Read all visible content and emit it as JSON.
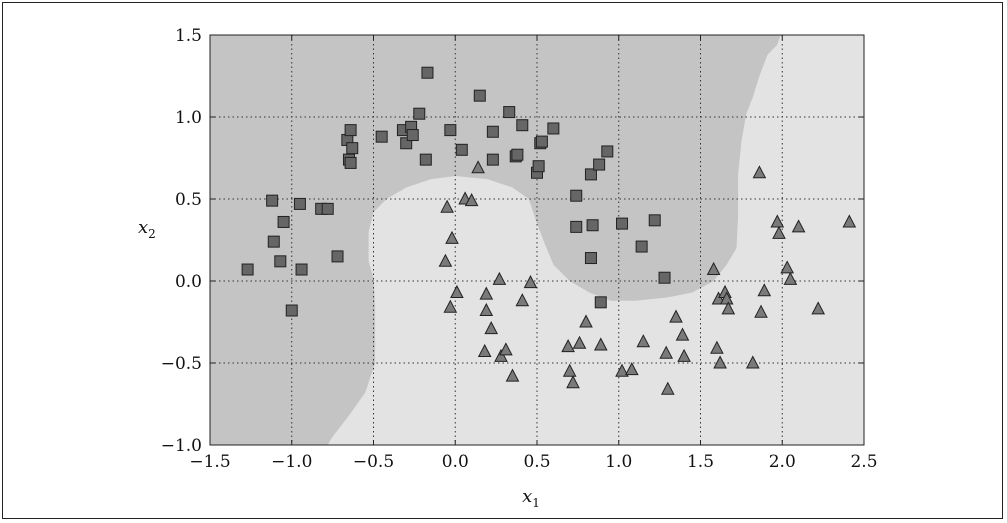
{
  "chart_data": {
    "type": "scatter",
    "title": "",
    "xlabel": "x",
    "xlabel_sub": "1",
    "ylabel": "x",
    "ylabel_sub": "2",
    "xlim": [
      -1.5,
      2.5
    ],
    "ylim": [
      -1.0,
      1.5
    ],
    "xticks": [
      "−1.5",
      "−1.0",
      "−0.5",
      "0.0",
      "0.5",
      "1.0",
      "1.5",
      "2.0",
      "2.5"
    ],
    "yticks": [
      "1.5",
      "1.0",
      "0.5",
      "0.0",
      "−0.5",
      "−1.0"
    ],
    "grid": true,
    "decision_regions": {
      "class0_color": "#c4c4c4",
      "class1_color": "#e3e3e3"
    },
    "series": [
      {
        "marker": "square",
        "color": "#666666",
        "points": [
          [
            -1.27,
            0.07
          ],
          [
            -1.12,
            0.49
          ],
          [
            -1.11,
            0.24
          ],
          [
            -1.07,
            0.12
          ],
          [
            -1.05,
            0.36
          ],
          [
            -1.0,
            -0.18
          ],
          [
            -0.95,
            0.47
          ],
          [
            -0.94,
            0.07
          ],
          [
            -0.82,
            0.44
          ],
          [
            -0.78,
            0.44
          ],
          [
            -0.72,
            0.15
          ],
          [
            -0.66,
            0.86
          ],
          [
            -0.65,
            0.74
          ],
          [
            -0.64,
            0.72
          ],
          [
            -0.64,
            0.92
          ],
          [
            -0.63,
            0.81
          ],
          [
            -0.45,
            0.88
          ],
          [
            -0.32,
            0.92
          ],
          [
            -0.3,
            0.84
          ],
          [
            -0.27,
            0.94
          ],
          [
            -0.26,
            0.89
          ],
          [
            -0.22,
            1.02
          ],
          [
            -0.18,
            0.74
          ],
          [
            -0.17,
            1.27
          ],
          [
            -0.03,
            0.92
          ],
          [
            0.04,
            0.8
          ],
          [
            0.15,
            1.13
          ],
          [
            0.23,
            0.74
          ],
          [
            0.23,
            0.91
          ],
          [
            0.33,
            1.03
          ],
          [
            0.37,
            0.76
          ],
          [
            0.38,
            0.77
          ],
          [
            0.41,
            0.95
          ],
          [
            0.5,
            0.66
          ],
          [
            0.51,
            0.7
          ],
          [
            0.52,
            0.84
          ],
          [
            0.53,
            0.85
          ],
          [
            0.6,
            0.93
          ],
          [
            0.74,
            0.52
          ],
          [
            0.74,
            0.33
          ],
          [
            0.83,
            0.65
          ],
          [
            0.83,
            0.14
          ],
          [
            0.84,
            0.34
          ],
          [
            0.88,
            0.71
          ],
          [
            0.89,
            -0.13
          ],
          [
            0.93,
            0.79
          ],
          [
            1.02,
            0.35
          ],
          [
            1.14,
            0.21
          ],
          [
            1.22,
            0.37
          ],
          [
            1.28,
            0.02
          ]
        ]
      },
      {
        "marker": "triangle",
        "color": "#7a7a7a",
        "points": [
          [
            -0.06,
            0.12
          ],
          [
            -0.05,
            0.45
          ],
          [
            -0.03,
            -0.16
          ],
          [
            -0.02,
            0.26
          ],
          [
            0.01,
            -0.07
          ],
          [
            0.06,
            0.5
          ],
          [
            0.1,
            0.49
          ],
          [
            0.14,
            0.69
          ],
          [
            0.18,
            -0.43
          ],
          [
            0.19,
            -0.08
          ],
          [
            0.19,
            -0.18
          ],
          [
            0.22,
            -0.29
          ],
          [
            0.27,
            0.01
          ],
          [
            0.28,
            -0.46
          ],
          [
            0.31,
            -0.42
          ],
          [
            0.35,
            -0.58
          ],
          [
            0.41,
            -0.12
          ],
          [
            0.46,
            -0.01
          ],
          [
            0.69,
            -0.4
          ],
          [
            0.7,
            -0.55
          ],
          [
            0.72,
            -0.62
          ],
          [
            0.76,
            -0.38
          ],
          [
            0.8,
            -0.25
          ],
          [
            0.89,
            -0.39
          ],
          [
            1.02,
            -0.55
          ],
          [
            1.08,
            -0.54
          ],
          [
            1.15,
            -0.37
          ],
          [
            1.29,
            -0.44
          ],
          [
            1.3,
            -0.66
          ],
          [
            1.35,
            -0.22
          ],
          [
            1.39,
            -0.33
          ],
          [
            1.4,
            -0.46
          ],
          [
            1.58,
            0.07
          ],
          [
            1.6,
            -0.41
          ],
          [
            1.61,
            -0.11
          ],
          [
            1.62,
            -0.5
          ],
          [
            1.65,
            -0.07
          ],
          [
            1.66,
            -0.11
          ],
          [
            1.67,
            -0.17
          ],
          [
            1.82,
            -0.5
          ],
          [
            1.86,
            0.66
          ],
          [
            1.87,
            -0.19
          ],
          [
            1.89,
            -0.06
          ],
          [
            1.97,
            0.36
          ],
          [
            1.98,
            0.29
          ],
          [
            2.03,
            0.08
          ],
          [
            2.05,
            0.01
          ],
          [
            2.1,
            0.33
          ],
          [
            2.22,
            -0.17
          ],
          [
            2.41,
            0.36
          ]
        ]
      }
    ]
  }
}
